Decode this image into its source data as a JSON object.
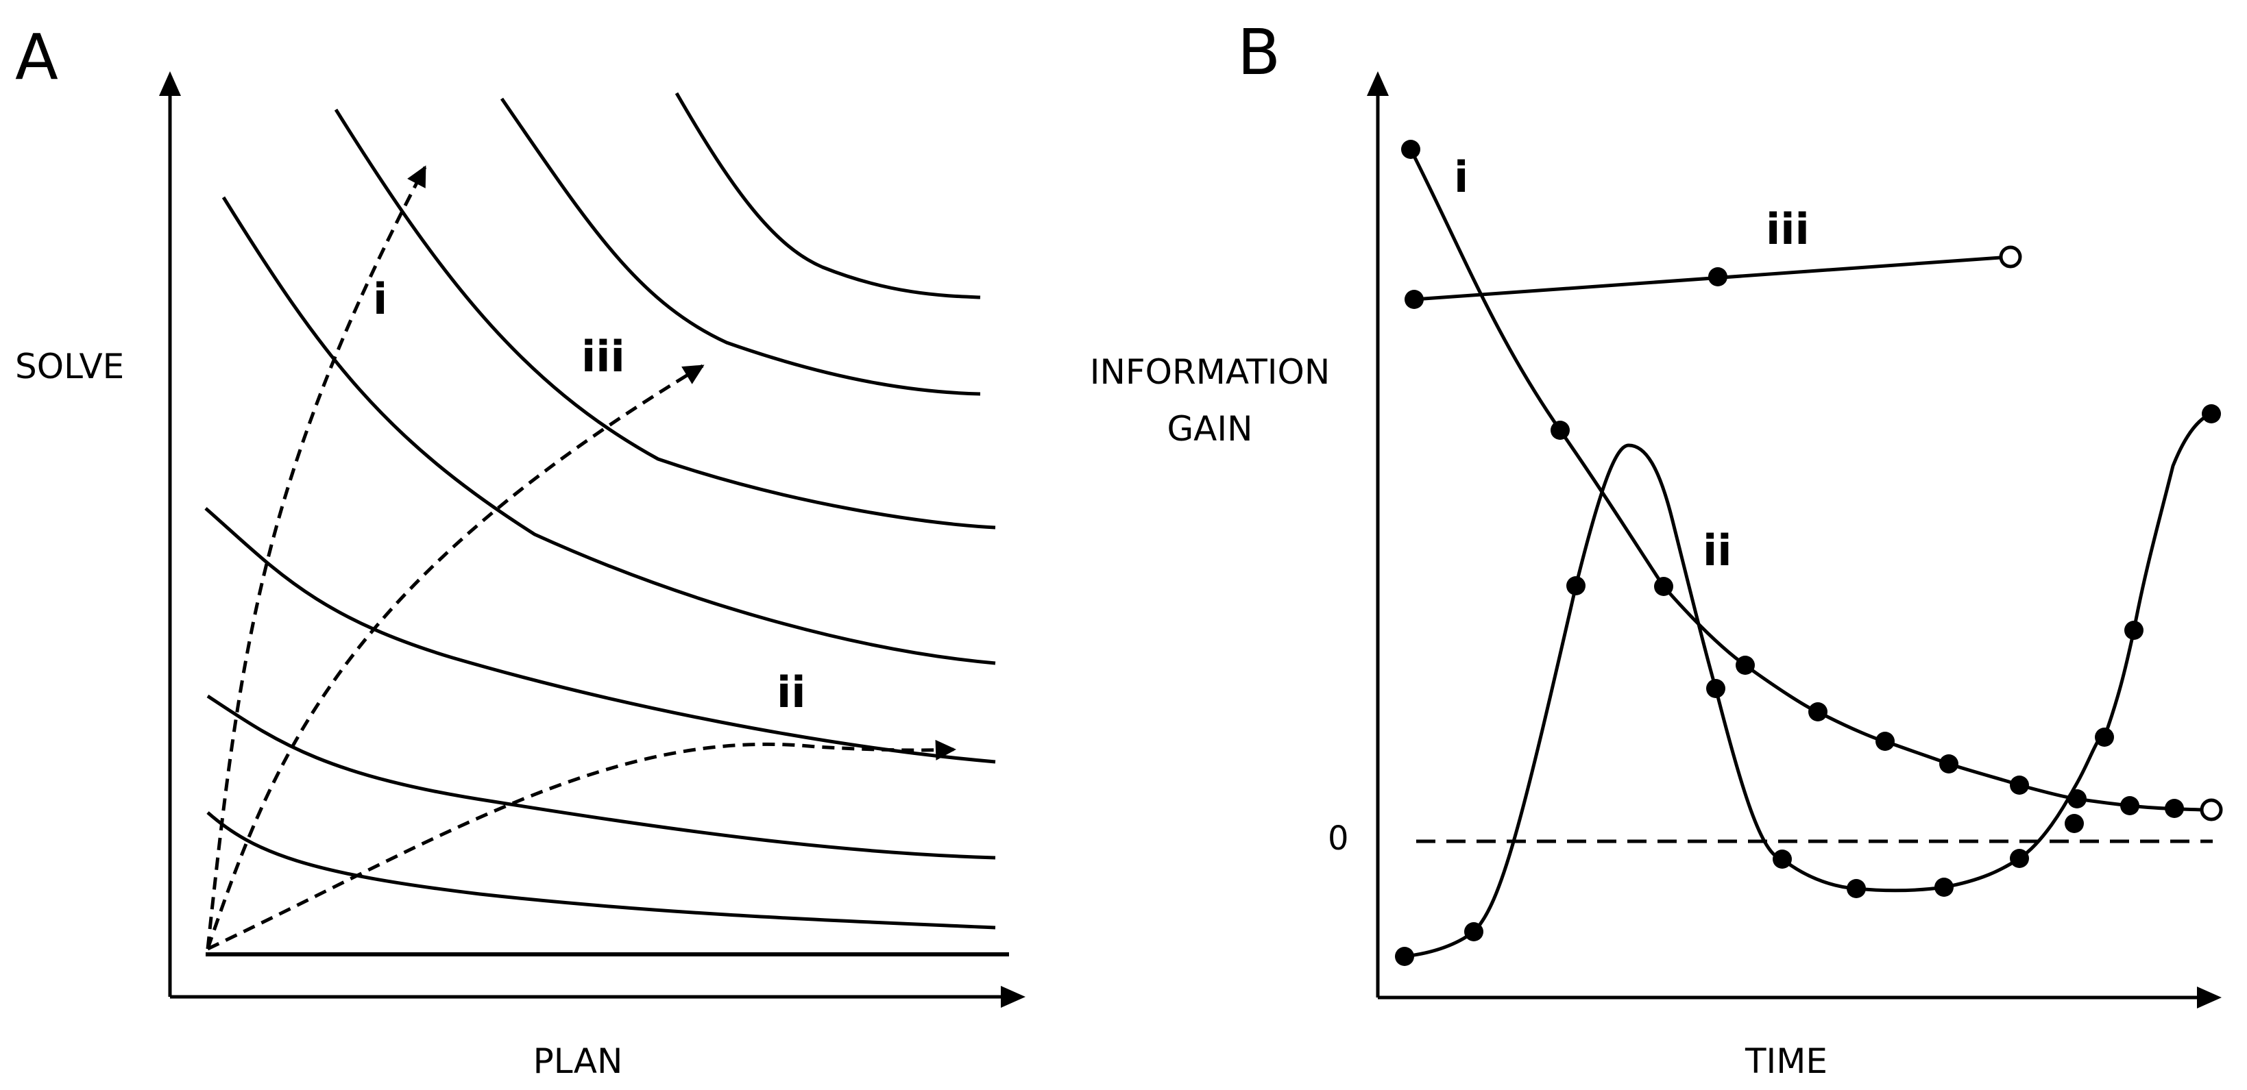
{
  "panel_a": {
    "letter": "A",
    "y_axis_label": "SOLVE",
    "x_axis_label": "PLAN",
    "path_labels": {
      "i": "i",
      "ii": "ii",
      "iii": "iii"
    }
  },
  "panel_b": {
    "letter": "B",
    "y_axis_label_line1": "INFORMATION",
    "y_axis_label_line2": "GAIN",
    "x_axis_label": "TIME",
    "zero_label": "0",
    "series_labels": {
      "i": "i",
      "ii": "ii",
      "iii": "iii"
    }
  }
}
